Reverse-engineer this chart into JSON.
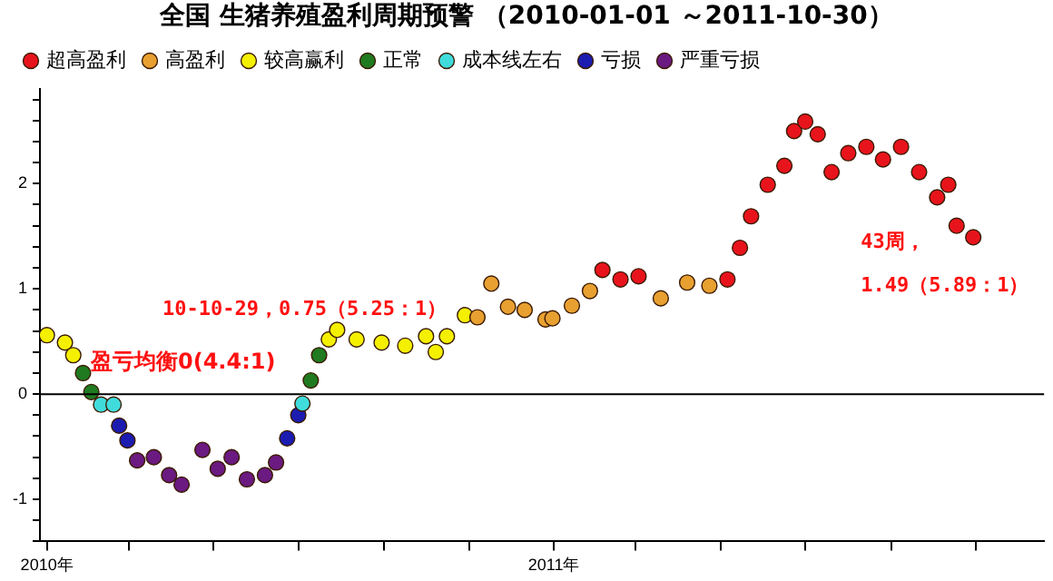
{
  "chart_data": {
    "type": "scatter",
    "title": "全国 生猪养殖盈利周期预警 （2010-01-01 ～2011-10-30）",
    "series": [
      {
        "name": "超高盈利",
        "color": "#e8141c",
        "x": [
          "2011-02-05",
          "2011-02-18",
          "2011-03-03",
          "2011-05-06",
          "2011-05-15",
          "2011-05-23",
          "2011-06-04",
          "2011-06-16",
          "2011-06-23",
          "2011-07-01",
          "2011-07-10",
          "2011-07-20",
          "2011-08-01",
          "2011-08-14",
          "2011-08-26",
          "2011-09-08",
          "2011-09-21",
          "2011-10-04",
          "2011-10-12",
          "2011-10-18",
          "2011-10-30"
        ],
        "values": [
          1.18,
          1.09,
          1.12,
          1.09,
          1.39,
          1.69,
          1.99,
          2.17,
          2.5,
          2.59,
          2.47,
          2.11,
          2.29,
          2.35,
          2.23,
          2.35,
          2.11,
          1.87,
          1.99,
          1.6,
          1.49
        ]
      },
      {
        "name": "高盈利",
        "color": "#e8a030",
        "x": [
          "2010-11-07",
          "2010-11-17",
          "2010-11-29",
          "2010-12-11",
          "2010-12-26",
          "2010-12-31",
          "2011-01-14",
          "2011-01-27",
          "2011-03-19",
          "2011-04-07",
          "2011-04-23"
        ],
        "values": [
          0.73,
          1.05,
          0.83,
          0.8,
          0.71,
          0.72,
          0.84,
          0.98,
          0.91,
          1.06,
          1.03
        ]
      },
      {
        "name": "较高赢利",
        "color": "#f4f000",
        "x": [
          "2010-01-01",
          "2010-01-14",
          "2010-01-20",
          "2010-07-23",
          "2010-07-29",
          "2010-08-12",
          "2010-08-30",
          "2010-09-16",
          "2010-10-01",
          "2010-10-08",
          "2010-10-16",
          "2010-10-29"
        ],
        "values": [
          0.56,
          0.49,
          0.37,
          0.52,
          0.61,
          0.52,
          0.49,
          0.46,
          0.55,
          0.4,
          0.55,
          0.75
        ]
      },
      {
        "name": "正常",
        "color": "#207a20",
        "x": [
          "2010-01-27",
          "2010-02-02",
          "2010-07-10",
          "2010-07-16"
        ],
        "values": [
          0.2,
          0.02,
          0.13,
          0.37
        ]
      },
      {
        "name": "成本线左右",
        "color": "#40dcdc",
        "x": [
          "2010-02-09",
          "2010-02-18",
          "2010-07-04"
        ],
        "values": [
          -0.1,
          -0.1,
          -0.09
        ]
      },
      {
        "name": "亏损",
        "color": "#1c1cb0",
        "x": [
          "2010-02-22",
          "2010-02-28",
          "2010-06-23",
          "2010-07-01"
        ],
        "values": [
          -0.3,
          -0.44,
          -0.42,
          -0.2
        ]
      },
      {
        "name": "严重亏损",
        "color": "#6a1a80",
        "x": [
          "2010-03-07",
          "2010-03-19",
          "2010-03-30",
          "2010-04-08",
          "2010-04-23",
          "2010-05-04",
          "2010-05-14",
          "2010-05-25",
          "2010-06-07",
          "2010-06-15"
        ],
        "values": [
          -0.63,
          -0.6,
          -0.77,
          -0.86,
          -0.53,
          -0.71,
          -0.6,
          -0.81,
          -0.77,
          -0.65
        ]
      }
    ],
    "xlim": [
      "2009-12-27",
      "2011-12-20"
    ],
    "xticks": [
      {
        "value": "2010-01-01",
        "label": "2010年"
      },
      {
        "value": "2010-03-01",
        "label": null
      },
      {
        "value": "2010-05-01",
        "label": null
      },
      {
        "value": "2010-07-01",
        "label": null
      },
      {
        "value": "2010-09-01",
        "label": null
      },
      {
        "value": "2010-11-01",
        "label": null
      },
      {
        "value": "2011-01-01",
        "label": "2011年"
      },
      {
        "value": "2011-03-01",
        "label": null
      },
      {
        "value": "2011-05-01",
        "label": null
      },
      {
        "value": "2011-07-01",
        "label": null
      },
      {
        "value": "2011-09-01",
        "label": null
      },
      {
        "value": "2011-11-01",
        "label": null
      }
    ],
    "ylim": [
      -1.4,
      2.9
    ],
    "yticks": [
      {
        "value": -1.4,
        "label": null
      },
      {
        "value": -1.2,
        "label": null
      },
      -1,
      {
        "value": -0.8,
        "label": null
      },
      {
        "value": -0.6,
        "label": null
      },
      {
        "value": -0.4,
        "label": null
      },
      {
        "value": -0.2,
        "label": null
      },
      0,
      {
        "value": 0.2,
        "label": null
      },
      {
        "value": 0.4,
        "label": null
      },
      {
        "value": 0.6,
        "label": null
      },
      {
        "value": 0.8,
        "label": null
      },
      1,
      {
        "value": 1.2,
        "label": null
      },
      {
        "value": 1.4,
        "label": null
      },
      {
        "value": 1.6,
        "label": null
      },
      {
        "value": 1.8,
        "label": null
      },
      2,
      {
        "value": 2.2,
        "label": null
      },
      {
        "value": 2.4,
        "label": null
      },
      {
        "value": 2.6,
        "label": null
      },
      {
        "value": 2.8,
        "label": null
      }
    ],
    "ref_lines": [
      {
        "axis": "y",
        "value": 0,
        "label": "盈亏均衡0(4.4:1)",
        "color": "#000000"
      }
    ],
    "annotations": [
      {
        "text": "10-10-29，0.75（5.25：1）",
        "x": "2010-10-29",
        "y": 0.75
      },
      {
        "text": "43周，\n1.49（5.89：1）",
        "x": "2011-10-30",
        "y": 1.49
      }
    ],
    "grid": false,
    "legend": "top",
    "marker": "circle"
  }
}
